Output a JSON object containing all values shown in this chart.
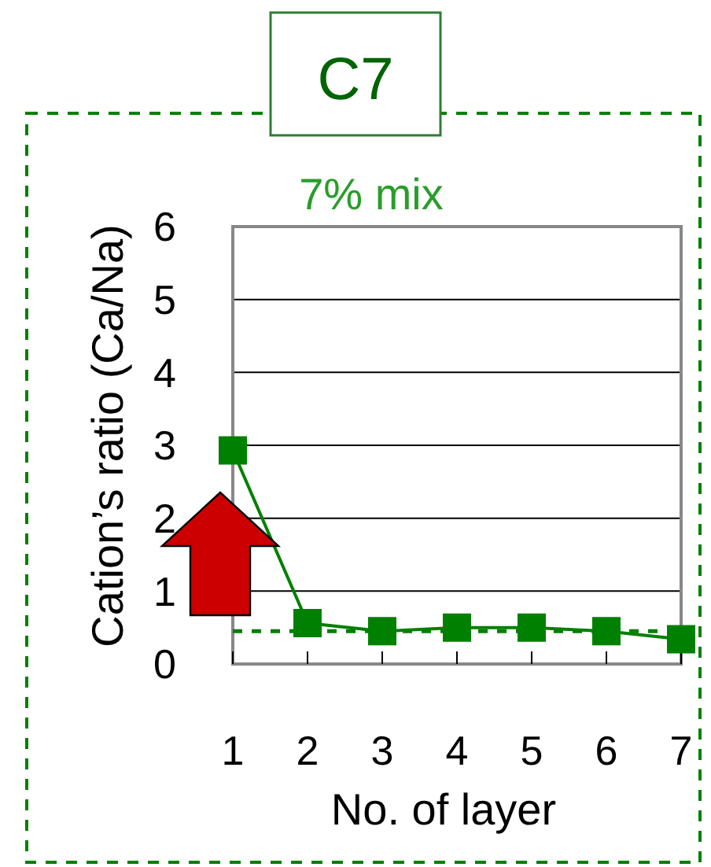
{
  "chart_data": {
    "type": "line",
    "title": "C7",
    "subtitle": "7% mix",
    "xlabel": "No. of layer",
    "ylabel": "Cation’s ratio (Ca/Na)",
    "x": [
      1,
      2,
      3,
      4,
      5,
      6,
      7
    ],
    "series": [
      {
        "color": "#008000",
        "values": [
          2.93,
          0.56,
          0.45,
          0.5,
          0.5,
          0.45,
          0.34
        ]
      }
    ],
    "xlim": [
      1,
      7
    ],
    "xticks": [
      1,
      2,
      3,
      4,
      5,
      6,
      7
    ],
    "ylim": [
      0,
      6
    ],
    "yticks": [
      0,
      1,
      2,
      3,
      4,
      5,
      6
    ],
    "grid": "y",
    "marker": "square",
    "line_style": "solid",
    "ref_lines": [
      {
        "axis": "y",
        "value": 0.45,
        "color": "#008000",
        "line_style": "dashed"
      }
    ]
  }
}
